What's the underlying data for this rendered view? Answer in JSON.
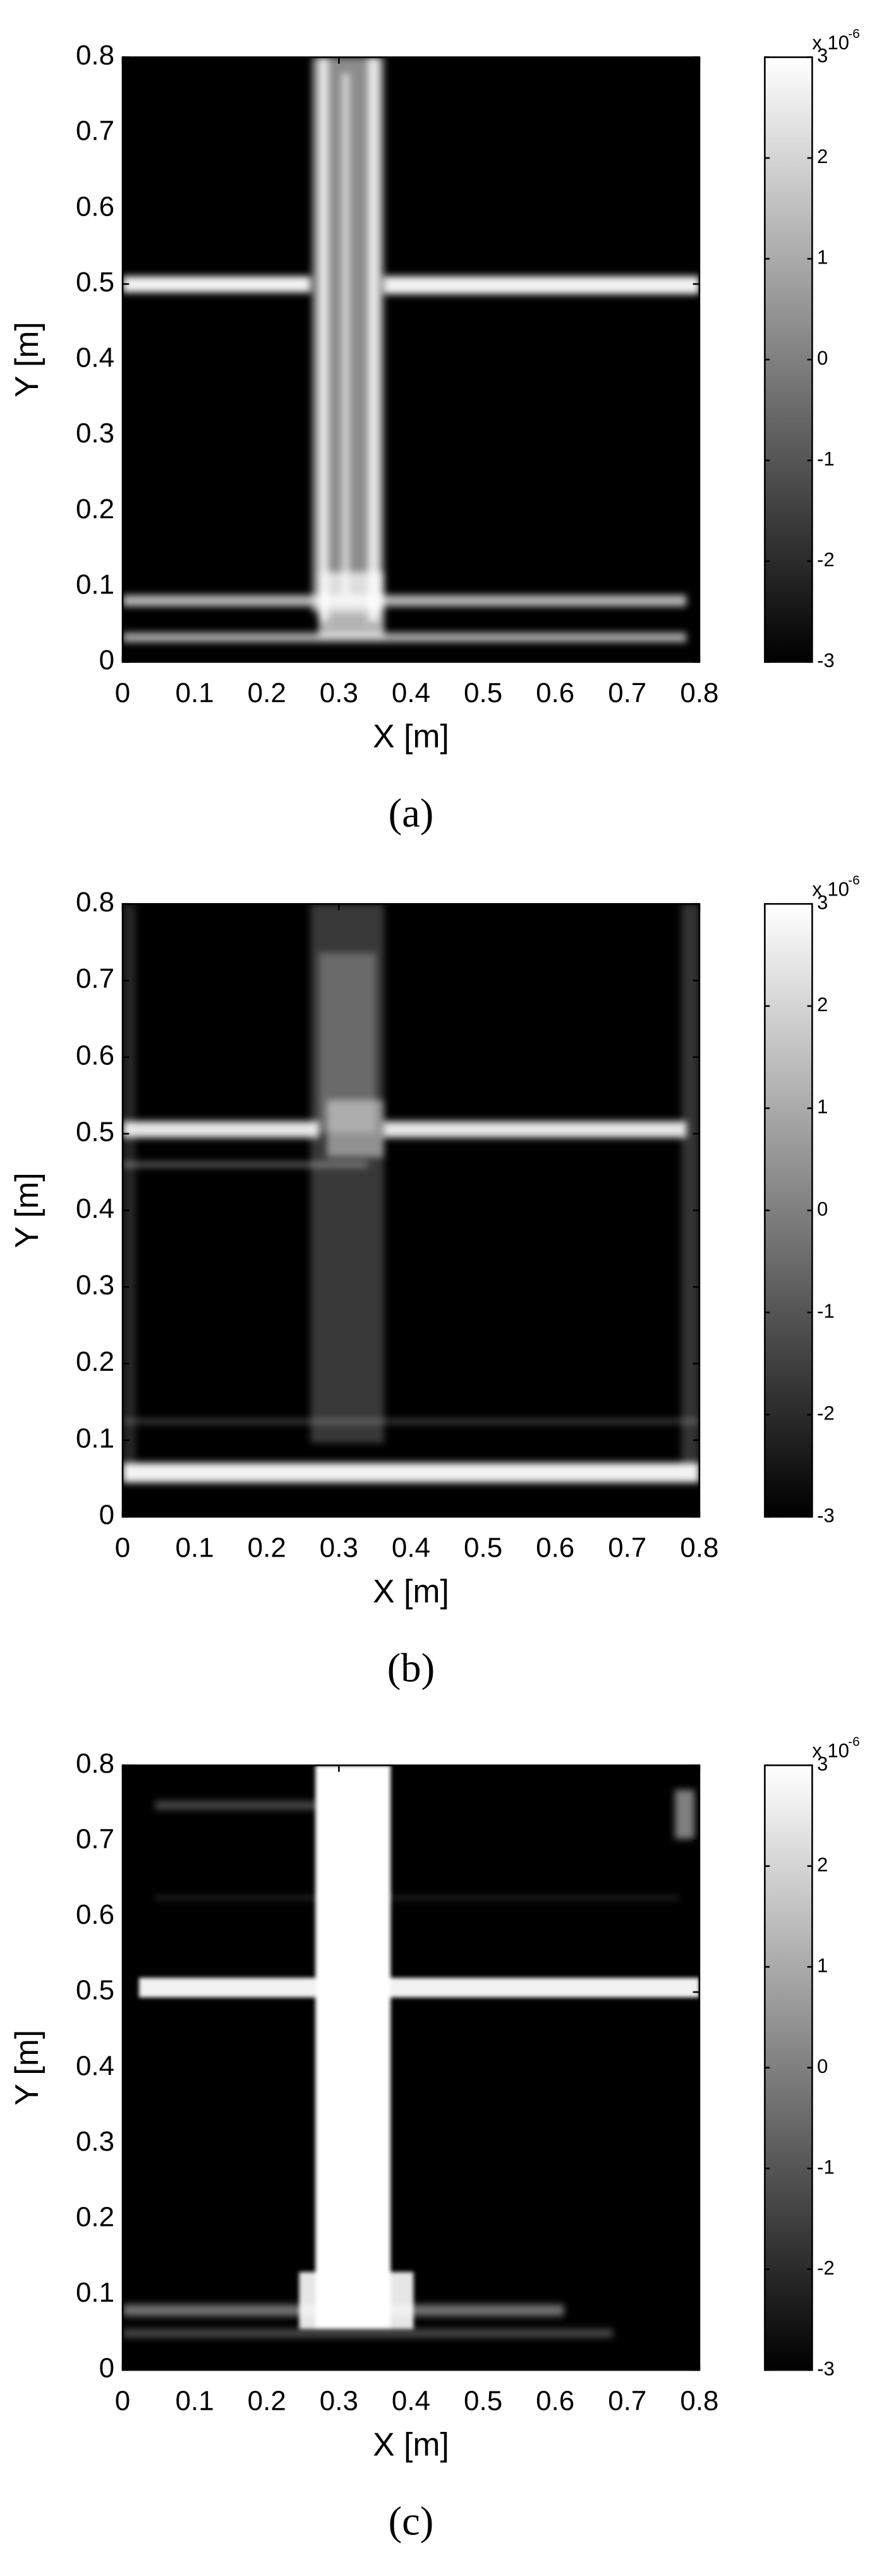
{
  "chart_data": [
    {
      "type": "heatmap",
      "caption": "(a)",
      "xlabel": "X [m]",
      "ylabel": "Y [m]",
      "xlim": [
        0,
        0.8
      ],
      "ylim": [
        0,
        0.8
      ],
      "xticks": [
        0,
        0.1,
        0.2,
        0.3,
        0.4,
        0.5,
        0.6,
        0.7,
        0.8
      ],
      "yticks": [
        0,
        0.1,
        0.2,
        0.3,
        0.4,
        0.5,
        0.6,
        0.7,
        0.8
      ],
      "colormap": "gray",
      "clim": [
        -3,
        3
      ],
      "cticks": [
        -3,
        -2,
        -1,
        0,
        1,
        2,
        3
      ],
      "scale_label": "x 10",
      "scale_exponent": "-6"
    },
    {
      "type": "heatmap",
      "caption": "(b)",
      "xlabel": "X [m]",
      "ylabel": "Y [m]",
      "xlim": [
        0,
        0.8
      ],
      "ylim": [
        0,
        0.8
      ],
      "xticks": [
        0,
        0.1,
        0.2,
        0.3,
        0.4,
        0.5,
        0.6,
        0.7,
        0.8
      ],
      "yticks": [
        0,
        0.1,
        0.2,
        0.3,
        0.4,
        0.5,
        0.6,
        0.7,
        0.8
      ],
      "colormap": "gray",
      "clim": [
        -3,
        3
      ],
      "cticks": [
        -3,
        -2,
        -1,
        0,
        1,
        2,
        3
      ],
      "scale_label": "x 10",
      "scale_exponent": "-6"
    },
    {
      "type": "heatmap",
      "caption": "(c)",
      "xlabel": "X [m]",
      "ylabel": "Y [m]",
      "xlim": [
        0,
        0.8
      ],
      "ylim": [
        0,
        0.8
      ],
      "xticks": [
        0,
        0.1,
        0.2,
        0.3,
        0.4,
        0.5,
        0.6,
        0.7,
        0.8
      ],
      "yticks": [
        0,
        0.1,
        0.2,
        0.3,
        0.4,
        0.5,
        0.6,
        0.7,
        0.8
      ],
      "colormap": "gray",
      "clim": [
        -3,
        3
      ],
      "cticks": [
        -3,
        -2,
        -1,
        0,
        1,
        2,
        3
      ],
      "scale_label": "x 10",
      "scale_exponent": "-6"
    }
  ]
}
